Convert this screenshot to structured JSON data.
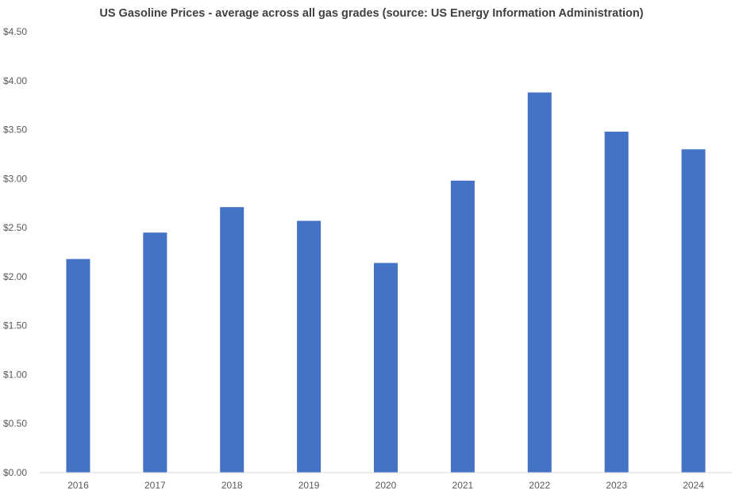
{
  "chart_data": {
    "type": "bar",
    "title": "US Gasoline Prices - average across all gas grades (source: US Energy Information Administration)",
    "xlabel": "",
    "ylabel": "",
    "categories": [
      "2016",
      "2017",
      "2018",
      "2019",
      "2020",
      "2021",
      "2022",
      "2023",
      "2024"
    ],
    "values": [
      2.18,
      2.45,
      2.71,
      2.57,
      2.14,
      2.98,
      3.88,
      3.48,
      3.3
    ],
    "ylim": [
      0,
      4.5
    ],
    "yticks": [
      0,
      0.5,
      1,
      1.5,
      2,
      2.5,
      3,
      3.5,
      4,
      4.5
    ],
    "ytick_labels": [
      "$0.00",
      "$0.50",
      "$1.00",
      "$1.50",
      "$2.00",
      "$2.50",
      "$3.00",
      "$3.50",
      "$4.00",
      "$4.50"
    ],
    "grid": false,
    "legend": "none",
    "colors": {
      "bar": "#4472C4",
      "axis": "#D9D9D9",
      "text": "#595959"
    }
  }
}
